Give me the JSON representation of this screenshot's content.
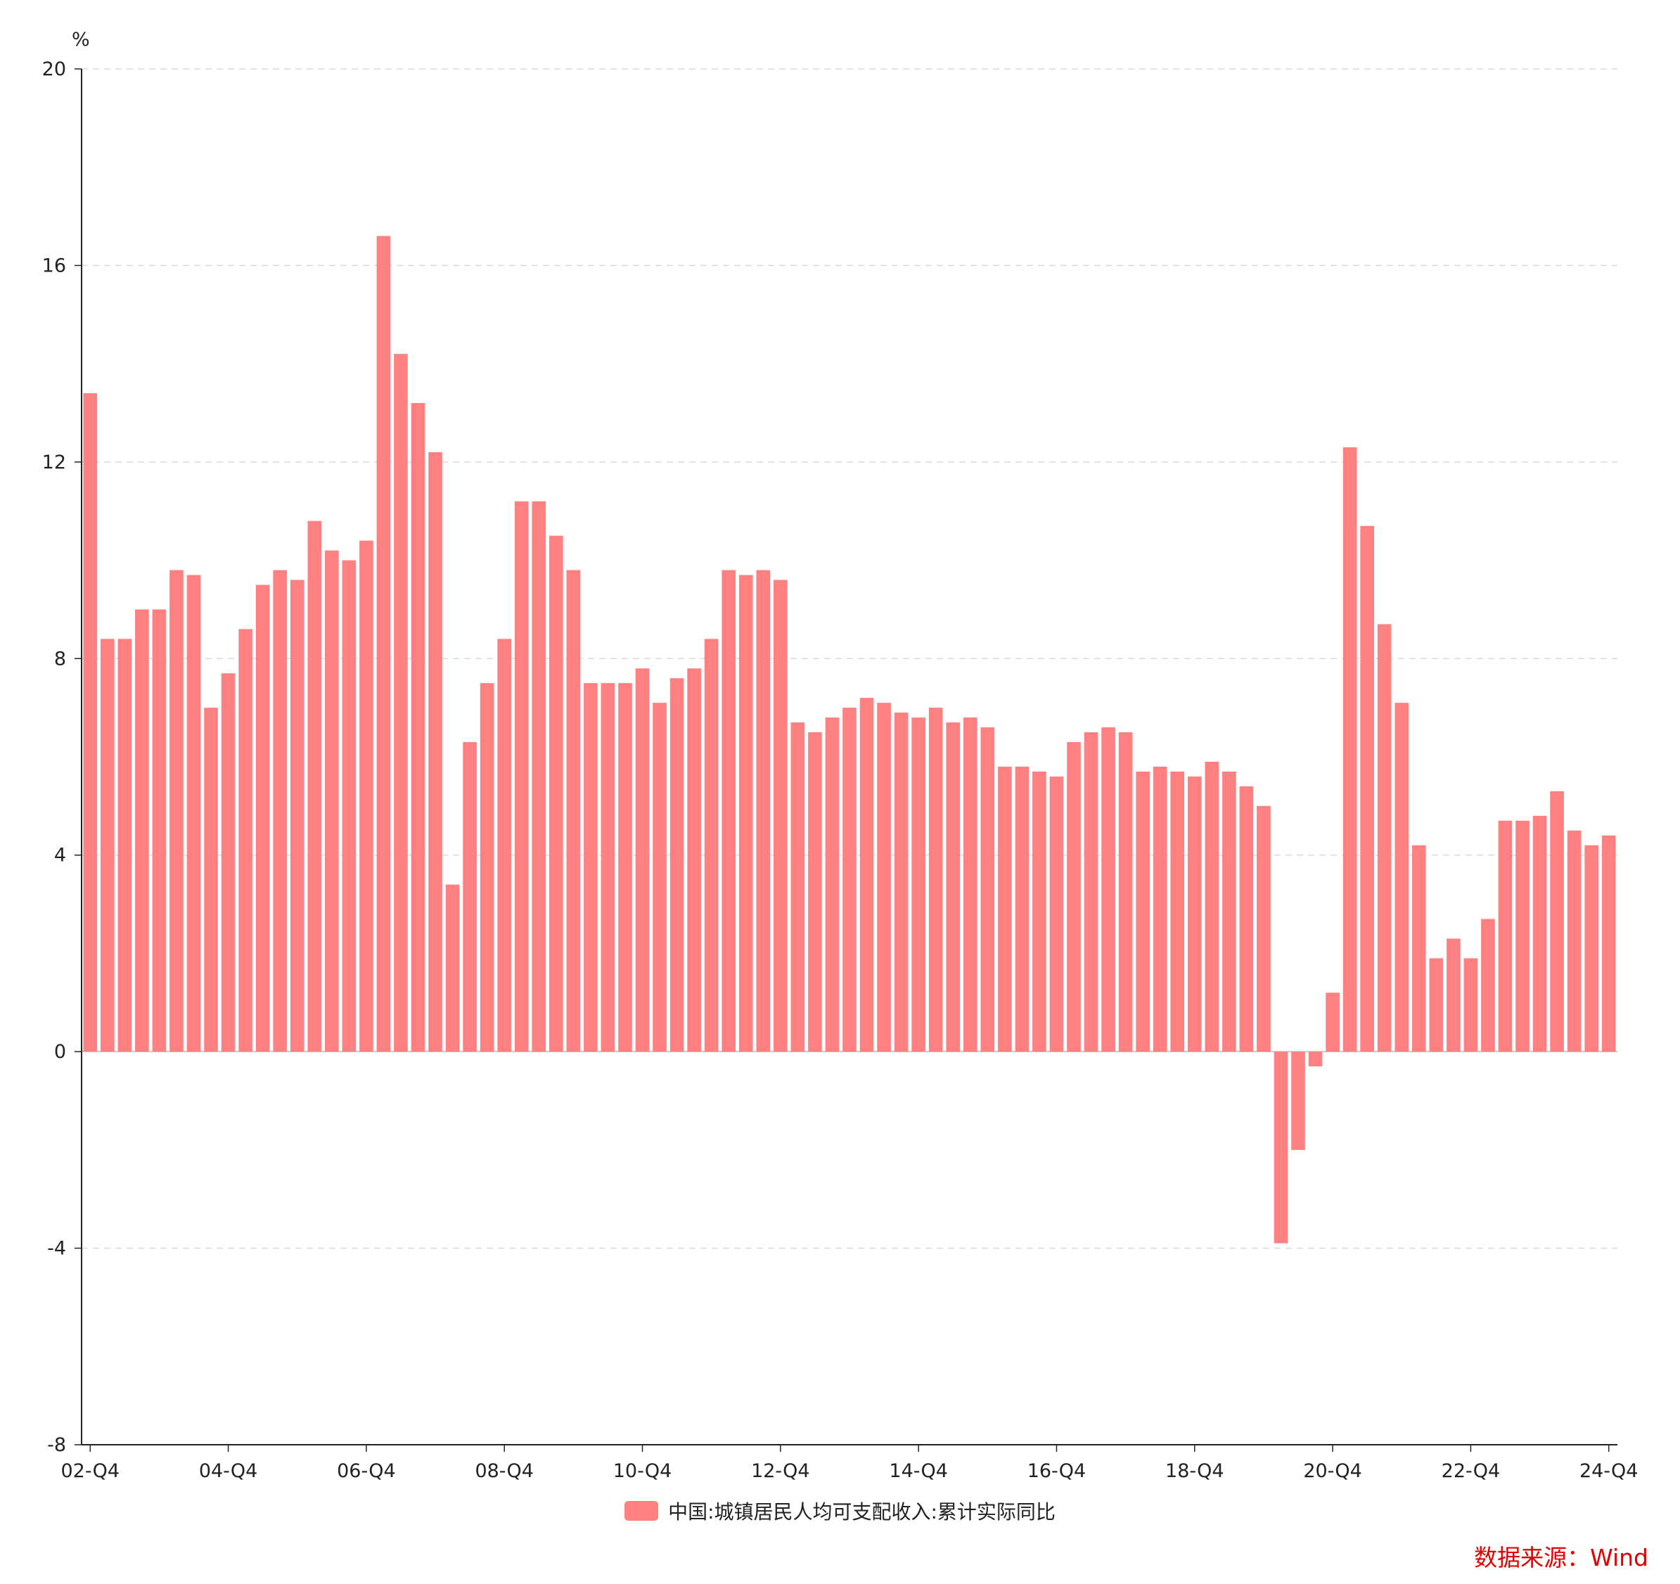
{
  "chart_data": {
    "type": "bar",
    "unit_label": "%",
    "ylim": [
      -8,
      20
    ],
    "y_ticks": [
      20,
      16,
      12,
      8,
      4,
      0,
      -4,
      -8
    ],
    "grid": true,
    "legend_position": "bottom",
    "x_tick_labels": [
      "02-Q4",
      "04-Q4",
      "06-Q4",
      "08-Q4",
      "10-Q4",
      "12-Q4",
      "14-Q4",
      "16-Q4",
      "18-Q4",
      "20-Q4",
      "22-Q4",
      "24-Q4"
    ],
    "categories": [
      "02-Q4",
      "03-Q1",
      "03-Q2",
      "03-Q3",
      "03-Q4",
      "04-Q1",
      "04-Q2",
      "04-Q3",
      "04-Q4",
      "05-Q1",
      "05-Q2",
      "05-Q3",
      "05-Q4",
      "06-Q1",
      "06-Q2",
      "06-Q3",
      "06-Q4",
      "07-Q1",
      "07-Q2",
      "07-Q3",
      "07-Q4",
      "08-Q1",
      "08-Q2",
      "08-Q3",
      "08-Q4",
      "09-Q1",
      "09-Q2",
      "09-Q3",
      "09-Q4",
      "10-Q1",
      "10-Q2",
      "10-Q3",
      "10-Q4",
      "11-Q1",
      "11-Q2",
      "11-Q3",
      "11-Q4",
      "12-Q1",
      "12-Q2",
      "12-Q3",
      "12-Q4",
      "13-Q1",
      "13-Q2",
      "13-Q3",
      "13-Q4",
      "14-Q1",
      "14-Q2",
      "14-Q3",
      "14-Q4",
      "15-Q1",
      "15-Q2",
      "15-Q3",
      "15-Q4",
      "16-Q1",
      "16-Q2",
      "16-Q3",
      "16-Q4",
      "17-Q1",
      "17-Q2",
      "17-Q3",
      "17-Q4",
      "18-Q1",
      "18-Q2",
      "18-Q3",
      "18-Q4",
      "19-Q1",
      "19-Q2",
      "19-Q3",
      "19-Q4",
      "20-Q1",
      "20-Q2",
      "20-Q3",
      "20-Q4",
      "21-Q1",
      "21-Q2",
      "21-Q3",
      "21-Q4",
      "22-Q1",
      "22-Q2",
      "22-Q3",
      "22-Q4",
      "23-Q1",
      "23-Q2",
      "23-Q3",
      "23-Q4",
      "24-Q1",
      "24-Q2",
      "24-Q3",
      "24-Q4"
    ],
    "series": [
      {
        "name": "中国:城镇居民人均可支配收入:累计实际同比",
        "color": "#ff8080",
        "values": [
          13.4,
          8.4,
          8.4,
          9.0,
          9.0,
          9.8,
          9.7,
          7.0,
          7.7,
          8.6,
          9.5,
          9.8,
          9.6,
          10.8,
          10.2,
          10.0,
          10.4,
          16.6,
          14.2,
          13.2,
          12.2,
          3.4,
          6.3,
          7.5,
          8.4,
          11.2,
          11.2,
          10.5,
          9.8,
          7.5,
          7.5,
          7.5,
          7.8,
          7.1,
          7.6,
          7.8,
          8.4,
          9.8,
          9.7,
          9.8,
          9.6,
          6.7,
          6.5,
          6.8,
          7.0,
          7.2,
          7.1,
          6.9,
          6.8,
          7.0,
          6.7,
          6.8,
          6.6,
          5.8,
          5.8,
          5.7,
          5.6,
          6.3,
          6.5,
          6.6,
          6.5,
          5.7,
          5.8,
          5.7,
          5.6,
          5.9,
          5.7,
          5.4,
          5.0,
          -3.9,
          -2.0,
          -0.3,
          1.2,
          12.3,
          10.7,
          8.7,
          7.1,
          4.2,
          1.9,
          2.3,
          1.9,
          2.7,
          4.7,
          4.7,
          4.8,
          5.3,
          4.5,
          4.2,
          4.4
        ]
      }
    ]
  },
  "source_text": "数据来源：Wind",
  "source_color": "#e00000"
}
